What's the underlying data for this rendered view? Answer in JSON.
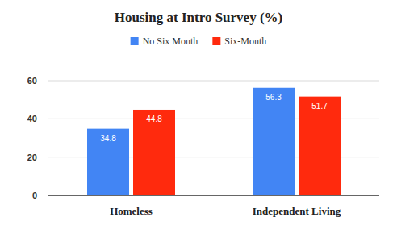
{
  "chart_data": {
    "type": "bar",
    "title": "Housing at Intro Survey (%)",
    "categories": [
      "Homeless",
      "Independent Living"
    ],
    "series": [
      {
        "name": "No Six Month",
        "color": "#4285f4",
        "values": [
          34.8,
          56.3
        ]
      },
      {
        "name": "Six-Month",
        "color": "#ff2a0d",
        "values": [
          44.8,
          51.7
        ]
      }
    ],
    "ylim": [
      0,
      60
    ],
    "yticks": [
      0,
      20,
      40,
      60
    ],
    "grid": true,
    "legend": "top",
    "data_labels": true
  }
}
